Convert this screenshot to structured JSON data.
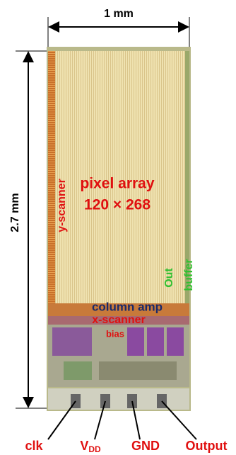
{
  "dimensions": {
    "width": "1 mm",
    "height": "2.7 mm"
  },
  "blocks": {
    "y_scanner": "y-scanner",
    "pixel_array": "pixel array",
    "array_size": "120 × 268",
    "out_buffer": [
      "Out",
      "buffer"
    ],
    "column_amp": "column amp",
    "x_scanner": "x-scanner",
    "bias": "bias"
  },
  "pins": [
    {
      "label": "clk"
    },
    {
      "label": "V",
      "subscript": "DD"
    },
    {
      "label": "GND"
    },
    {
      "label": "Output"
    }
  ]
}
